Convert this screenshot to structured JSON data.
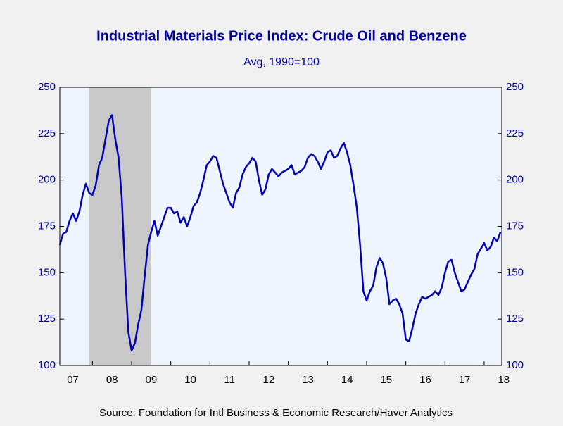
{
  "chart_data": {
    "type": "line",
    "title": "Industrial Materials Price Index: Crude Oil and Benzene",
    "subtitle": "Avg, 1990=100",
    "source": "Source:  Foundation for Intl Business & Economic Research/Haver Analytics",
    "xlim": [
      2007.167,
      2018.45
    ],
    "xticks": [
      {
        "value": 2007.5,
        "label": "07"
      },
      {
        "value": 2008.5,
        "label": "08"
      },
      {
        "value": 2009.5,
        "label": "09"
      },
      {
        "value": 2010.5,
        "label": "10"
      },
      {
        "value": 2011.5,
        "label": "11"
      },
      {
        "value": 2012.5,
        "label": "12"
      },
      {
        "value": 2013.5,
        "label": "13"
      },
      {
        "value": 2014.5,
        "label": "14"
      },
      {
        "value": 2015.5,
        "label": "15"
      },
      {
        "value": 2016.5,
        "label": "16"
      },
      {
        "value": 2017.5,
        "label": "17"
      },
      {
        "value": 2018.5,
        "label": "18"
      }
    ],
    "ylim": [
      100,
      250
    ],
    "yticks": [
      100,
      125,
      150,
      175,
      200,
      225,
      250
    ],
    "y2lim": [
      100,
      250
    ],
    "y2ticks": [
      100,
      125,
      150,
      175,
      200,
      225,
      250
    ],
    "shading": [
      {
        "start": 2007.917,
        "end": 2009.5,
        "color": "#c8c8c8"
      }
    ],
    "x": [
      2007.167,
      2007.25,
      2007.333,
      2007.417,
      2007.5,
      2007.583,
      2007.667,
      2007.75,
      2007.833,
      2007.917,
      2008.0,
      2008.083,
      2008.167,
      2008.25,
      2008.333,
      2008.417,
      2008.5,
      2008.583,
      2008.667,
      2008.75,
      2008.833,
      2008.917,
      2009.0,
      2009.083,
      2009.167,
      2009.25,
      2009.333,
      2009.417,
      2009.5,
      2009.583,
      2009.667,
      2009.75,
      2009.833,
      2009.917,
      2010.0,
      2010.083,
      2010.167,
      2010.25,
      2010.333,
      2010.417,
      2010.5,
      2010.583,
      2010.667,
      2010.75,
      2010.833,
      2010.917,
      2011.0,
      2011.083,
      2011.167,
      2011.25,
      2011.333,
      2011.417,
      2011.5,
      2011.583,
      2011.667,
      2011.75,
      2011.833,
      2011.917,
      2012.0,
      2012.083,
      2012.167,
      2012.25,
      2012.333,
      2012.417,
      2012.5,
      2012.583,
      2012.667,
      2012.75,
      2012.833,
      2012.917,
      2013.0,
      2013.083,
      2013.167,
      2013.25,
      2013.333,
      2013.417,
      2013.5,
      2013.583,
      2013.667,
      2013.75,
      2013.833,
      2013.917,
      2014.0,
      2014.083,
      2014.167,
      2014.25,
      2014.333,
      2014.417,
      2014.5,
      2014.583,
      2014.667,
      2014.75,
      2014.833,
      2014.917,
      2015.0,
      2015.083,
      2015.167,
      2015.25,
      2015.333,
      2015.417,
      2015.5,
      2015.583,
      2015.667,
      2015.75,
      2015.833,
      2015.917,
      2016.0,
      2016.083,
      2016.167,
      2016.25,
      2016.333,
      2016.417,
      2016.5,
      2016.583,
      2016.667,
      2016.75,
      2016.833,
      2016.917,
      2017.0,
      2017.083,
      2017.167,
      2017.25,
      2017.333,
      2017.417,
      2017.5,
      2017.583,
      2017.667,
      2017.75,
      2017.833,
      2017.917,
      2018.0,
      2018.083,
      2018.167,
      2018.25,
      2018.333,
      2018.417
    ],
    "series": [
      {
        "color": "#0000b4",
        "values": [
          165,
          171,
          172,
          178,
          182,
          178,
          183,
          192,
          198,
          193,
          192,
          197,
          208,
          212,
          222,
          232,
          235,
          222,
          212,
          190,
          150,
          118,
          108,
          112,
          122,
          130,
          148,
          165,
          172,
          178,
          170,
          175,
          180,
          185,
          185,
          182,
          183,
          177,
          180,
          175,
          180,
          186,
          188,
          193,
          200,
          208,
          210,
          213,
          212,
          205,
          198,
          193,
          188,
          185,
          193,
          196,
          203,
          207,
          209,
          212,
          210,
          200,
          192,
          195,
          203,
          206,
          204,
          202,
          204,
          205,
          206,
          208,
          203,
          204,
          205,
          207,
          212,
          214,
          213,
          210,
          206,
          210,
          215,
          216,
          212,
          213,
          217,
          220,
          215,
          208,
          197,
          185,
          165,
          140,
          135,
          140,
          143,
          153,
          158,
          155,
          147,
          133,
          135,
          136,
          133,
          128,
          114,
          113,
          120,
          128,
          133,
          137,
          136,
          137,
          138,
          140,
          138,
          142,
          150,
          156,
          157,
          150,
          145,
          140,
          141,
          145,
          149,
          152,
          160,
          163,
          166,
          162,
          164,
          169,
          167,
          172
        ]
      }
    ]
  }
}
